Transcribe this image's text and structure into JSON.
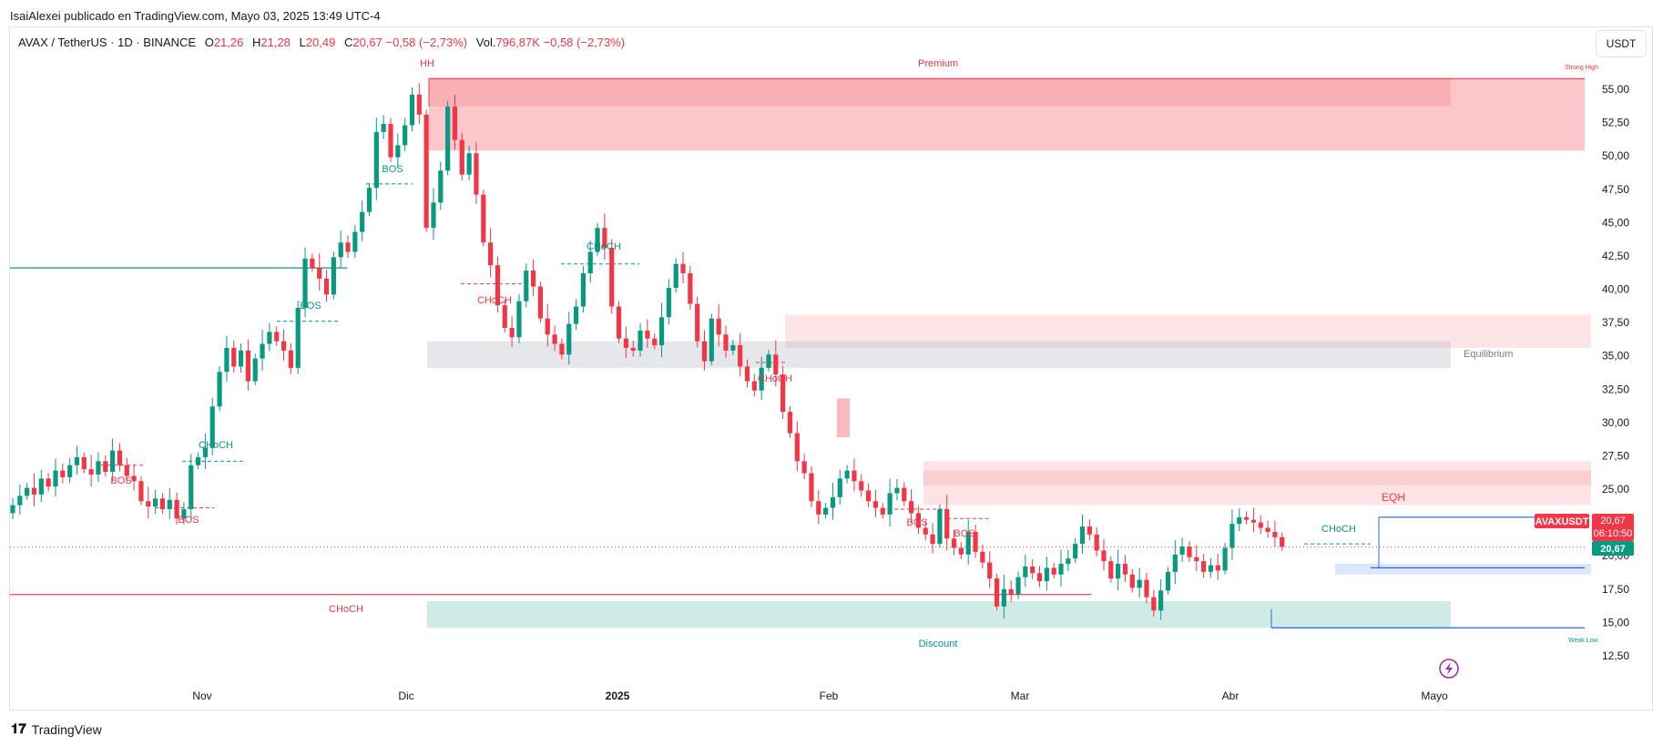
{
  "header": {
    "published": "IsaiAlexei publicado en TradingView.com, Mayo 03, 2025 13:49 UTC-4"
  },
  "legend": {
    "symbol": "AVAX / TetherUS · 1D · BINANCE",
    "o_label": "O",
    "o": "21,26",
    "h_label": "H",
    "h": "21,28",
    "l_label": "L",
    "l": "20,49",
    "c_label": "C",
    "c": "20,67",
    "chg": "−0,58 (−2,73%)",
    "vol_label": "Vol.",
    "vol": "796,87K",
    "vol_chg": "−0,58 (−2,73%)"
  },
  "currency_button": "USDT",
  "footer": {
    "brand": "TradingView"
  },
  "colors": {
    "up": "#089981",
    "down": "#f23645",
    "premium": "#f23645",
    "discount": "#089981",
    "equilibrium": "#b2b5be",
    "eq_line": "#2962ff"
  },
  "chart_data": {
    "type": "candlestick",
    "title": "AVAX / TetherUS · 1D · BINANCE",
    "ylim": [
      10.5,
      57.5
    ],
    "y_ticks": [
      "55,00",
      "52,50",
      "50,00",
      "47,50",
      "45,00",
      "42,50",
      "40,00",
      "37,50",
      "35,00",
      "32,50",
      "30,00",
      "27,50",
      "25,00",
      "22,50",
      "20,00",
      "17,50",
      "15,00",
      "12,50"
    ],
    "x_ticks": [
      "Nov",
      "Dic",
      "2025",
      "Feb",
      "Mar",
      "Abr",
      "Mayo"
    ],
    "last_price_label": "AVAXUSDT",
    "last_price": "20,67",
    "countdown": "06:10:50",
    "close_label": "20,67",
    "zones": {
      "premium": "Premium",
      "equilibrium": "Equilibrium",
      "discount": "Discount",
      "strong_high": "Strong High",
      "weak_low": "Weak Low"
    },
    "annotations": [
      "HH",
      "BOS",
      "BOS",
      "BOS",
      "BOS",
      "BOS",
      "BOS",
      "CHoCH",
      "CHoCH",
      "CHoCH",
      "CHoCH",
      "CHoCH",
      "CHoCH",
      "EQH"
    ],
    "closes": [
      23.8,
      24.5,
      25.1,
      24.6,
      25.8,
      25.2,
      26.4,
      25.9,
      26.8,
      27.4,
      26.5,
      26.1,
      27.1,
      26.3,
      27.9,
      26.8,
      26.0,
      25.6,
      24.1,
      23.7,
      24.3,
      23.5,
      24.2,
      22.8,
      23.5,
      26.8,
      27.4,
      28.1,
      31.2,
      33.8,
      35.6,
      34.2,
      35.4,
      33.1,
      34.8,
      35.9,
      36.8,
      36.1,
      35.4,
      34.1,
      38.6,
      42.3,
      41.6,
      40.8,
      39.6,
      42.4,
      43.5,
      42.8,
      44.3,
      45.8,
      47.6,
      51.8,
      52.4,
      49.9,
      50.8,
      52.3,
      54.6,
      53.1,
      44.6,
      46.5,
      48.9,
      53.7,
      51.2,
      48.6,
      50.2,
      47.1,
      43.5,
      41.8,
      38.8,
      37.1,
      36.4,
      39.1,
      41.4,
      40.2,
      37.8,
      36.6,
      35.9,
      35.1,
      37.4,
      38.7,
      41.2,
      42.8,
      44.6,
      43.1,
      38.7,
      36.3,
      35.6,
      35.4,
      36.9,
      36.3,
      35.8,
      37.9,
      40.1,
      41.9,
      41.2,
      38.9,
      36.1,
      34.6,
      37.8,
      36.6,
      35.4,
      35.8,
      34.2,
      33.1,
      32.4,
      34.1,
      35.1,
      33.6,
      30.8,
      29.2,
      27.1,
      26.2,
      24.1,
      23.1,
      23.6,
      24.4,
      25.8,
      26.4,
      25.6,
      24.9,
      24.1,
      23.6,
      23.1,
      24.7,
      25.1,
      24.1,
      23.2,
      22.1,
      21.6,
      20.9,
      23.5,
      21.3,
      20.6,
      20.1,
      21.8,
      20.3,
      19.5,
      18.3,
      16.2,
      17.5,
      17.1,
      18.4,
      19.2,
      18.7,
      18.1,
      19.1,
      18.6,
      19.4,
      19.8,
      20.9,
      22.2,
      21.6,
      20.4,
      19.6,
      18.3,
      19.4,
      18.6,
      17.6,
      18.2,
      16.9,
      15.9,
      17.4,
      18.8,
      20.1,
      20.7,
      19.9,
      19.6,
      18.8,
      19.3,
      18.9,
      20.6,
      22.4,
      22.9,
      22.7,
      22.5,
      22.1,
      21.8,
      21.4,
      20.67
    ]
  }
}
